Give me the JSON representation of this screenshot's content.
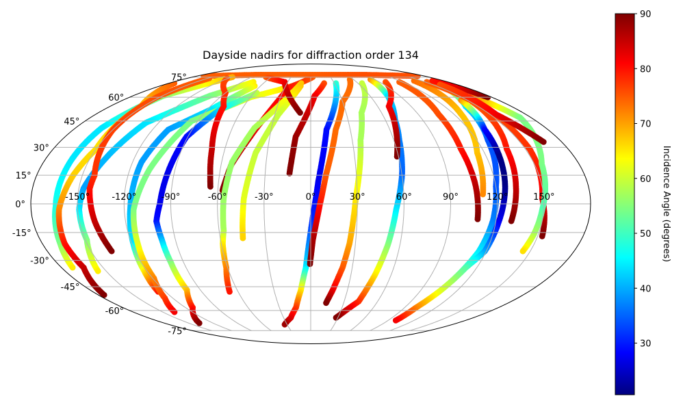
{
  "chart_data": {
    "type": "scatter",
    "projection": "mollweide",
    "title": "Dayside nadirs for diffraction order 134",
    "xlabel": "",
    "ylabel": "",
    "grid": true,
    "lon_ticks": [
      -150,
      -120,
      -90,
      -60,
      -30,
      0,
      30,
      60,
      90,
      120,
      150
    ],
    "lon_tick_labels": [
      "-150°",
      "-120°",
      "-90°",
      "-60°",
      "-30°",
      "0°",
      "30°",
      "60°",
      "90°",
      "120°",
      "150°"
    ],
    "lat_ticks": [
      75,
      60,
      45,
      30,
      15,
      0,
      -15,
      -30,
      -45,
      -60,
      -75
    ],
    "lat_tick_labels": [
      "75°",
      "60°",
      "45°",
      "30°",
      "15°",
      "0°",
      "-15°",
      "-30°",
      "-45°",
      "-60°",
      "-75°"
    ],
    "colorbar": {
      "label": "Incidence Angle (degrees)",
      "colormap": "jet",
      "range": [
        20.6,
        90
      ],
      "ticks": [
        30,
        40,
        50,
        60,
        70,
        80,
        90
      ],
      "tick_labels": [
        "30",
        "40",
        "50",
        "60",
        "70",
        "80",
        "90"
      ]
    },
    "point_format": "[longitude_deg, latitude_deg, incidence_angle_deg]",
    "tracks": [
      {
        "points": [
          [
            -170,
            76,
            75
          ],
          [
            -90,
            77,
            75
          ],
          [
            0,
            77,
            75
          ],
          [
            90,
            77,
            76
          ],
          [
            170,
            76,
            76
          ]
        ]
      },
      {
        "points": [
          [
            -119,
            75,
            70
          ],
          [
            -149,
            61,
            56
          ],
          [
            -160,
            41,
            45
          ],
          [
            -162,
            24,
            45
          ],
          [
            -164,
            -1,
            48
          ],
          [
            -168,
            -21,
            55
          ],
          [
            -172,
            -34,
            65
          ]
        ]
      },
      {
        "points": [
          [
            -173,
            70,
            75
          ],
          [
            -152,
            54,
            68
          ],
          [
            -150,
            29,
            66
          ],
          [
            -156,
            15,
            67
          ],
          [
            -162,
            -3,
            72
          ],
          [
            -165,
            -21,
            80
          ],
          [
            -164,
            -34,
            85
          ],
          [
            -175,
            -50,
            90
          ]
        ]
      },
      {
        "points": [
          [
            -75,
            71,
            65
          ],
          [
            -102,
            61,
            55
          ],
          [
            -130,
            44,
            45
          ],
          [
            -139,
            25,
            42
          ],
          [
            -147,
            8,
            40
          ],
          [
            -149,
            -3,
            45
          ],
          [
            -149,
            -19,
            55
          ],
          [
            -156,
            -36,
            65
          ]
        ]
      },
      {
        "points": [
          [
            -148,
            74,
            75
          ],
          [
            -153,
            60,
            76
          ],
          [
            -150,
            40,
            77
          ],
          [
            -142,
            15,
            78
          ],
          [
            -143,
            8,
            80
          ],
          [
            -140,
            -9,
            85
          ],
          [
            -136,
            -25,
            90
          ]
        ]
      },
      {
        "points": [
          [
            -67,
            68,
            65
          ],
          [
            -87,
            52,
            45
          ],
          [
            -108,
            40,
            40
          ],
          [
            -114,
            22,
            40
          ],
          [
            -116,
            -2,
            42
          ],
          [
            -119,
            -21,
            45
          ],
          [
            -122,
            -36,
            65
          ],
          [
            -126,
            -48,
            80
          ]
        ]
      },
      {
        "points": [
          [
            -12,
            70,
            68
          ],
          [
            -60,
            60,
            62
          ],
          [
            -95,
            45,
            55
          ],
          [
            -107,
            18,
            55
          ],
          [
            -114,
            -3,
            55
          ],
          [
            -116,
            -21,
            62
          ],
          [
            -119,
            -40,
            72
          ],
          [
            -127,
            -52,
            77
          ],
          [
            -138,
            -61,
            82
          ]
        ]
      },
      {
        "points": [
          [
            -57,
            63,
            60
          ],
          [
            -79,
            52,
            45
          ],
          [
            -91,
            36,
            30
          ],
          [
            -94,
            18,
            28
          ],
          [
            -97,
            0,
            28
          ],
          [
            -100,
            -9,
            30
          ],
          [
            -99,
            -19,
            42
          ],
          [
            -99,
            -31,
            55
          ],
          [
            -101,
            -47,
            68
          ],
          [
            -113,
            -58,
            80
          ],
          [
            -137,
            -69,
            90
          ]
        ]
      },
      {
        "points": [
          [
            -122,
            74,
            76
          ],
          [
            -90,
            63,
            78
          ],
          [
            -78,
            54,
            80
          ],
          [
            -69,
            29,
            85
          ],
          [
            -66,
            15,
            88
          ],
          [
            -65,
            9,
            90
          ]
        ]
      },
      {
        "points": [
          [
            3,
            75,
            75
          ],
          [
            -25,
            67,
            80
          ],
          [
            -42,
            40,
            83
          ],
          [
            -53,
            21,
            87
          ],
          [
            -57,
            7,
            90
          ]
        ]
      },
      {
        "points": [
          [
            -12,
            70,
            68
          ],
          [
            -43,
            41,
            58
          ],
          [
            -53,
            22,
            57
          ],
          [
            -56,
            3,
            57
          ],
          [
            -57,
            -14,
            58
          ],
          [
            -59,
            -21,
            65
          ],
          [
            -61,
            -34,
            72
          ],
          [
            -67,
            -48,
            80
          ]
        ]
      },
      {
        "points": [
          [
            -12,
            68,
            68
          ],
          [
            -27,
            49,
            60
          ],
          [
            -38,
            27,
            60
          ],
          [
            -43,
            3,
            62
          ],
          [
            -45,
            -18,
            67
          ]
        ]
      },
      {
        "points": [
          [
            17,
            70,
            76
          ],
          [
            4,
            61,
            82
          ],
          [
            -11,
            36,
            88
          ],
          [
            -14,
            16,
            90
          ]
        ]
      },
      {
        "points": [
          [
            -68,
            75,
            75
          ],
          [
            -34,
            71,
            82
          ],
          [
            -9,
            50,
            90
          ]
        ]
      },
      {
        "points": [
          [
            32,
            70,
            50
          ],
          [
            12,
            40,
            30
          ],
          [
            5,
            12,
            28
          ],
          [
            1,
            -9,
            32
          ],
          [
            -3.5,
            -34,
            45
          ],
          [
            -8,
            -47,
            65
          ],
          [
            -14,
            -58,
            77
          ],
          [
            -22,
            -65,
            83
          ],
          [
            -33,
            -70,
            88
          ]
        ]
      },
      {
        "points": [
          [
            55,
            73,
            74
          ],
          [
            30,
            57,
            74
          ],
          [
            19,
            40,
            74
          ],
          [
            10,
            15,
            75
          ],
          [
            6,
            0,
            80
          ],
          [
            1.4,
            -19,
            87
          ],
          [
            -0.5,
            -32,
            90
          ]
        ]
      },
      {
        "points": [
          [
            65,
            70,
            60
          ],
          [
            43,
            50,
            58
          ],
          [
            36,
            34,
            58
          ],
          [
            29,
            3,
            65
          ],
          [
            26,
            -21,
            70
          ],
          [
            23,
            -34,
            75
          ],
          [
            18,
            -47,
            82
          ],
          [
            14,
            -55,
            90
          ]
        ]
      },
      {
        "points": [
          [
            84,
            73,
            72
          ],
          [
            78,
            61,
            45
          ],
          [
            68,
            46,
            40
          ],
          [
            64,
            34,
            38
          ],
          [
            60,
            15,
            36
          ],
          [
            55,
            -3,
            45
          ],
          [
            52,
            -21,
            55
          ],
          [
            48,
            -38,
            65
          ],
          [
            43,
            -54,
            78
          ],
          [
            28,
            -65,
            90
          ]
        ]
      },
      {
        "points": [
          [
            98,
            71,
            76
          ],
          [
            70,
            54,
            82
          ],
          [
            59,
            25,
            90
          ]
        ]
      },
      {
        "points": [
          [
            116,
            71,
            75
          ],
          [
            107,
            49,
            76
          ],
          [
            105,
            29,
            80
          ],
          [
            107,
            9,
            86
          ],
          [
            108,
            -8,
            90
          ]
        ]
      },
      {
        "points": [
          [
            140,
            72,
            74
          ],
          [
            126,
            49,
            68
          ],
          [
            115,
            27,
            68
          ],
          [
            111,
            5,
            72
          ]
        ]
      },
      {
        "points": [
          [
            160,
            70,
            72
          ],
          [
            139,
            54,
            45
          ],
          [
            128,
            34,
            35
          ],
          [
            120,
            9,
            35
          ],
          [
            118,
            -9,
            38
          ],
          [
            115,
            -25,
            45
          ],
          [
            109,
            -41,
            55
          ]
        ]
      },
      {
        "points": [
          [
            144,
            58,
            72
          ],
          [
            132,
            40,
            30
          ],
          [
            129,
            25,
            21
          ],
          [
            126,
            9,
            21
          ],
          [
            122,
            -9,
            28
          ],
          [
            119,
            -25,
            40
          ],
          [
            112,
            -34,
            52
          ],
          [
            106,
            -48,
            62
          ],
          [
            101,
            -58,
            72
          ],
          [
            99,
            -67,
            82
          ]
        ]
      },
      {
        "points": [
          [
            152,
            57,
            75
          ],
          [
            137,
            29,
            80
          ],
          [
            133,
            9,
            85
          ],
          [
            130,
            -9,
            90
          ]
        ]
      },
      {
        "points": [
          [
            152,
            71,
            75
          ],
          [
            153,
            60,
            76
          ],
          [
            153,
            29,
            78
          ],
          [
            149,
            3,
            82
          ],
          [
            153,
            -17,
            90
          ]
        ]
      },
      {
        "points": [
          [
            163,
            61,
            74
          ],
          [
            171,
            47,
            55
          ],
          [
            155,
            21,
            55
          ],
          [
            149,
            -3,
            52
          ],
          [
            147,
            -16,
            58
          ],
          [
            145,
            -25,
            66
          ]
        ]
      },
      {
        "points": [
          [
            165,
            72,
            80
          ],
          [
            172,
            66,
            84
          ],
          [
            176,
            60,
            90
          ]
        ]
      },
      {
        "points": [
          [
            159,
            69,
            76
          ],
          [
            155,
            49,
            82
          ],
          [
            167,
            33,
            90
          ]
        ]
      }
    ]
  }
}
